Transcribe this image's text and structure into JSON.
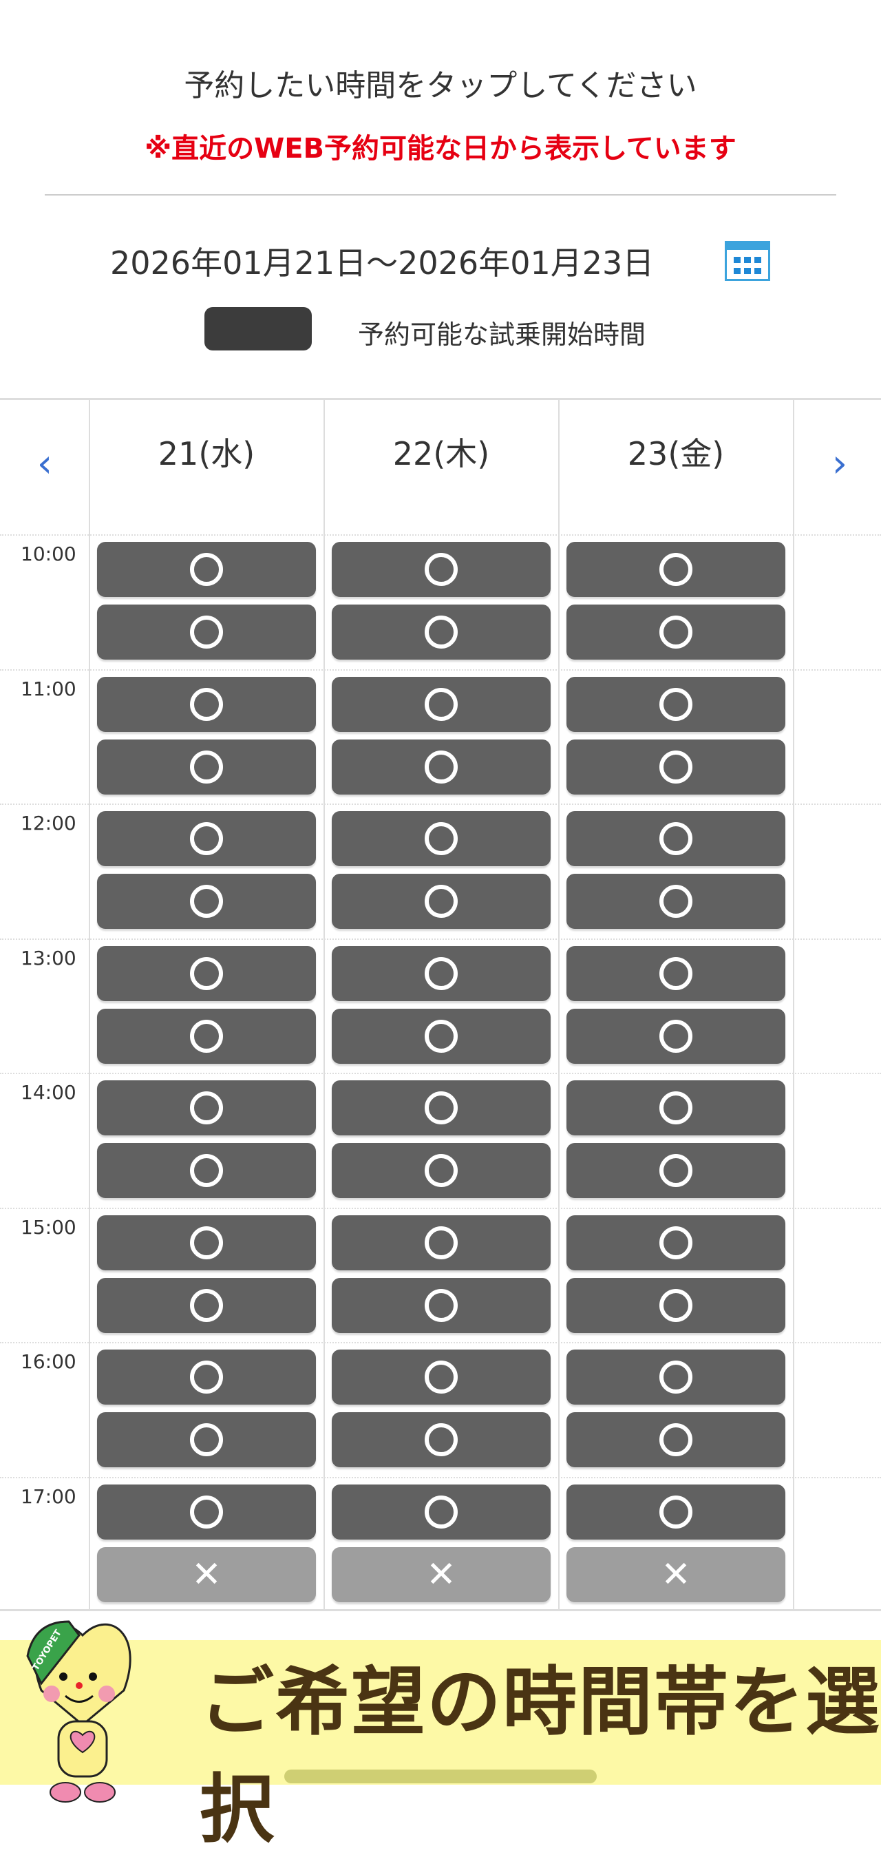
{
  "header": {
    "title": "予約したい時間をタップしてください",
    "notice": "※直近のWEB予約可能な日から表示しています",
    "date_range": "2026年01月21日～2026年01月23日",
    "calendar_icon": "calendar-icon",
    "legend_label": "予約可能な試乗開始時間"
  },
  "colors": {
    "available": "#616161",
    "unavailable": "#9e9e9e",
    "accent": "#3a6fd0",
    "notice": "#e60012"
  },
  "nav": {
    "prev": "‹",
    "next": "›"
  },
  "days": [
    {
      "label": "21(水)"
    },
    {
      "label": "22(木)"
    },
    {
      "label": "23(金)"
    }
  ],
  "hours": [
    "10:00",
    "11:00",
    "12:00",
    "13:00",
    "14:00",
    "15:00",
    "16:00",
    "17:00"
  ],
  "slots": [
    [
      "o",
      "o",
      "o",
      "o",
      "o",
      "o",
      "o",
      "o",
      "o",
      "o",
      "o",
      "o",
      "o",
      "o",
      "o",
      "x"
    ],
    [
      "o",
      "o",
      "o",
      "o",
      "o",
      "o",
      "o",
      "o",
      "o",
      "o",
      "o",
      "o",
      "o",
      "o",
      "o",
      "x"
    ],
    [
      "o",
      "o",
      "o",
      "o",
      "o",
      "o",
      "o",
      "o",
      "o",
      "o",
      "o",
      "o",
      "o",
      "o",
      "o",
      "x"
    ]
  ],
  "banner": {
    "text": "ご希望の時間帯を選択",
    "mascot_lettering": "TOYOPET"
  }
}
